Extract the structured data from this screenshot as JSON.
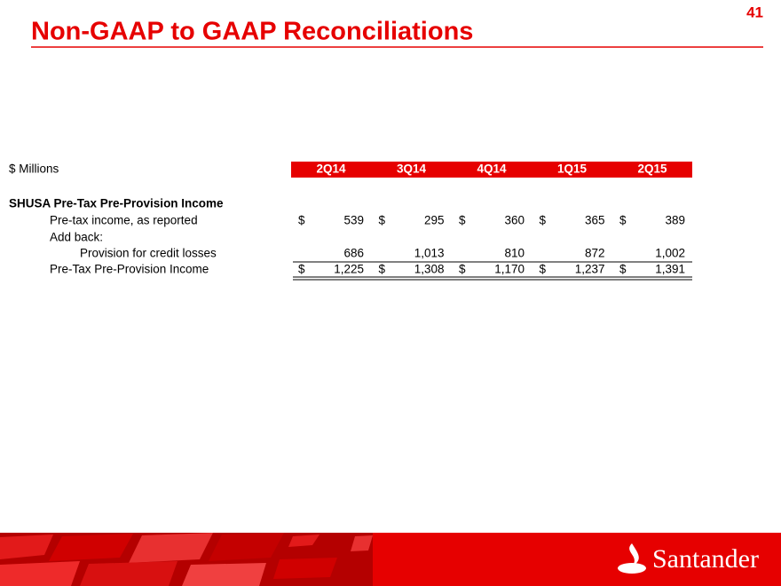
{
  "page_number": "41",
  "title": "Non-GAAP to GAAP Reconciliations",
  "table": {
    "units_label": "$ Millions",
    "columns": [
      "2Q14",
      "3Q14",
      "4Q14",
      "1Q15",
      "2Q15"
    ],
    "section": "SHUSA Pre-Tax Pre-Provision Income",
    "rows": [
      {
        "label": "Pre-tax income, as reported",
        "currency": "$",
        "values": [
          "539",
          "295",
          "360",
          "365",
          "389"
        ]
      },
      {
        "label": "Add back:"
      },
      {
        "label": "Provision for credit losses",
        "values": [
          "686",
          "1,013",
          "810",
          "872",
          "1,002"
        ]
      },
      {
        "label": "Pre-Tax Pre-Provision Income",
        "currency": "$",
        "values": [
          "1,225",
          "1,308",
          "1,170",
          "1,237",
          "1,391"
        ]
      }
    ]
  },
  "logo": "Santander"
}
